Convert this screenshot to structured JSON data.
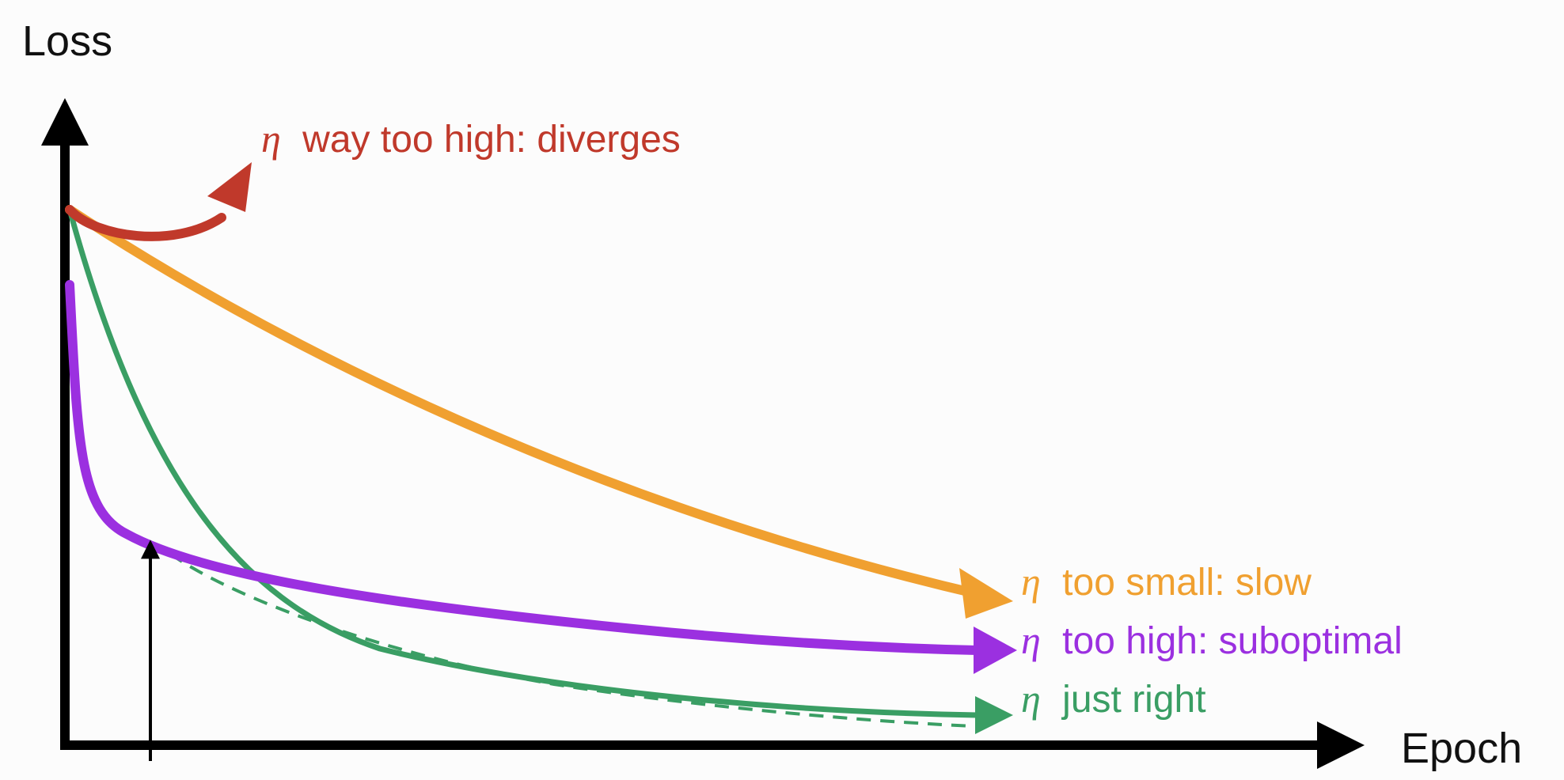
{
  "chart_data": {
    "type": "line",
    "xlabel": "Epoch",
    "ylabel": "Loss",
    "curves": [
      {
        "id": "diverges",
        "symbol": "η",
        "label": "way too high: diverges",
        "color": "#c0392b"
      },
      {
        "id": "slow",
        "symbol": "η",
        "label": "too small: slow",
        "color": "#f0a030"
      },
      {
        "id": "suboptimal",
        "symbol": "η",
        "label": "too high: suboptimal",
        "color": "#9b30e0"
      },
      {
        "id": "just-right",
        "symbol": "η",
        "label": "just right",
        "color": "#3a9e64"
      }
    ]
  }
}
